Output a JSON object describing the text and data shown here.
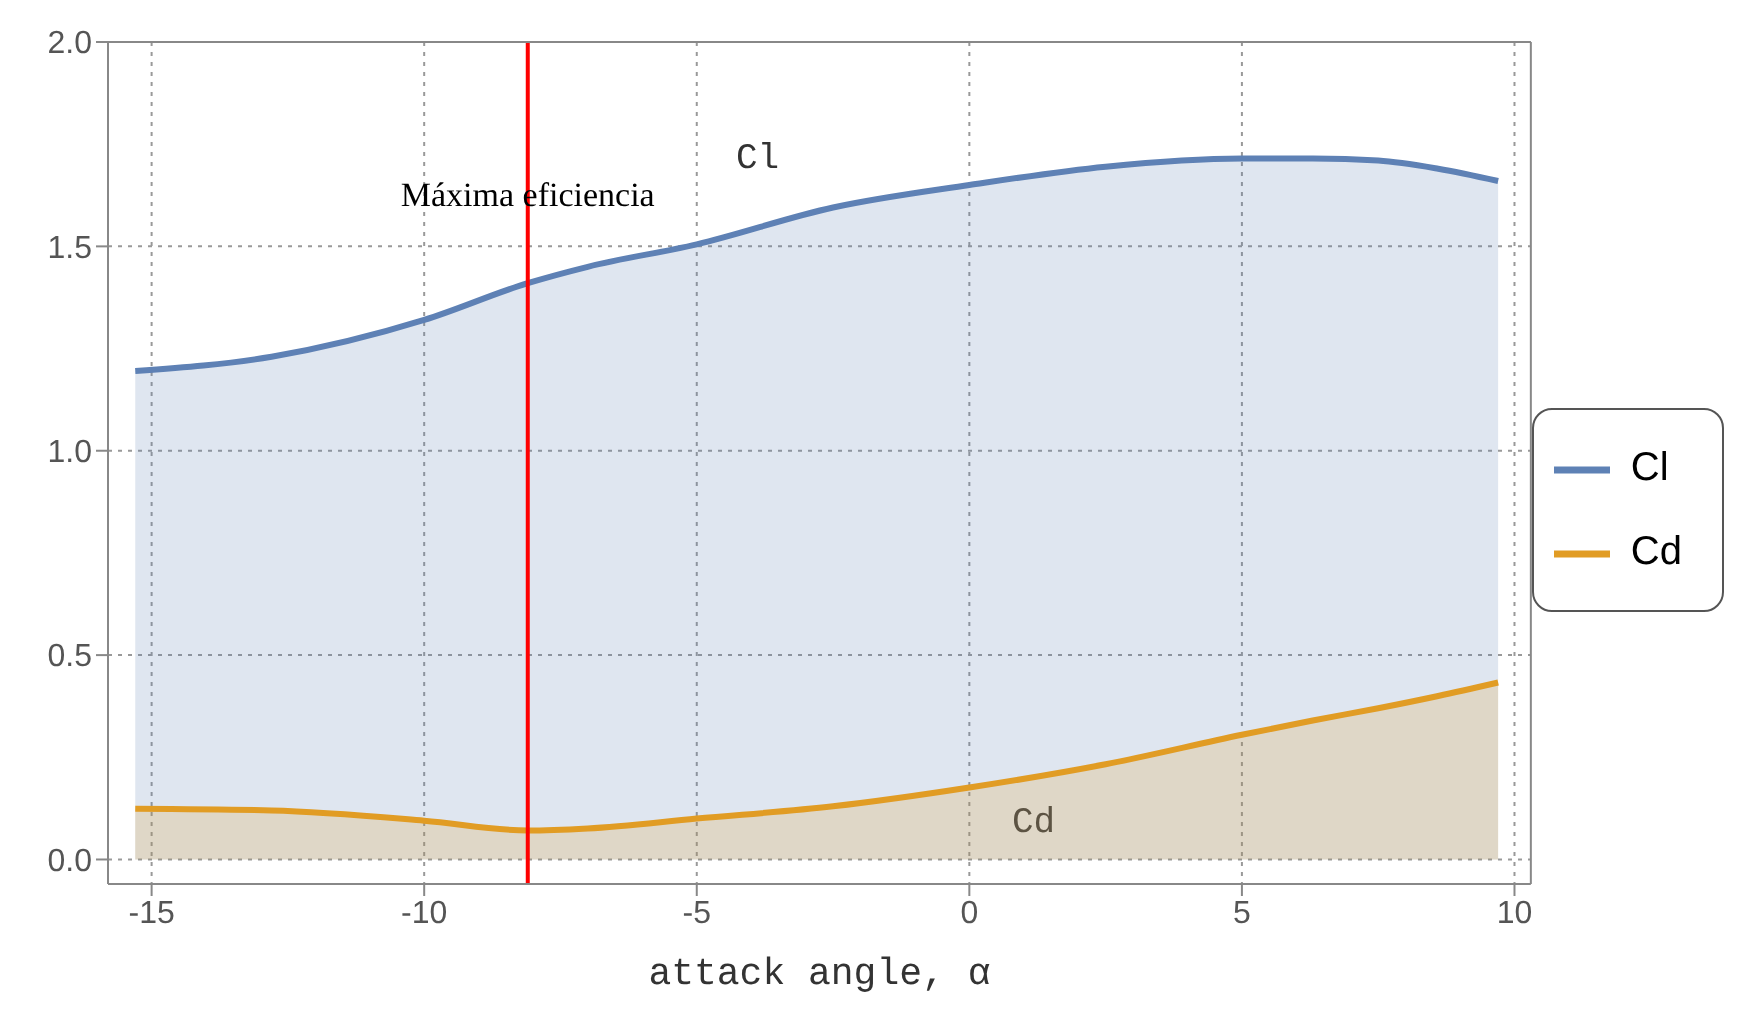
{
  "chart_data": {
    "type": "area",
    "xlabel": "attack angle, α",
    "x": [
      -15.3,
      -12.8,
      -10,
      -8.1,
      -7,
      -5,
      -2.5,
      0,
      2.5,
      5,
      6.3,
      7.5,
      8.6,
      9.7
    ],
    "series": [
      {
        "name": "Cl",
        "color": "#5e81b5",
        "values": [
          1.195,
          1.23,
          1.32,
          1.41,
          1.45,
          1.505,
          1.595,
          1.65,
          1.695,
          1.715,
          1.715,
          1.71,
          1.69,
          1.66
        ]
      },
      {
        "name": "Cd",
        "color": "#e19c24",
        "values": [
          0.124,
          0.12,
          0.095,
          0.071,
          0.076,
          0.1,
          0.13,
          0.176,
          0.233,
          0.305,
          0.34,
          0.37,
          0.4,
          0.433
        ]
      }
    ],
    "xlim": [
      -15.8,
      10.3
    ],
    "xticks": [
      -15,
      -10,
      -5,
      0,
      5,
      10
    ],
    "ylim": [
      -0.06,
      2.0
    ],
    "yticks": [
      {
        "value": 0,
        "label": "0.0"
      },
      0.5,
      {
        "value": 1,
        "label": "1.0"
      },
      1.5,
      {
        "value": 2,
        "label": "2.0"
      }
    ],
    "grid": true,
    "legend": "right",
    "line_style": "solid",
    "ref_lines": [
      {
        "axis": "x",
        "value": -8.1,
        "label": "Máxima eficiencia",
        "color": "#ff0000"
      }
    ],
    "annotations": [
      "Cl",
      "Cd"
    ]
  }
}
